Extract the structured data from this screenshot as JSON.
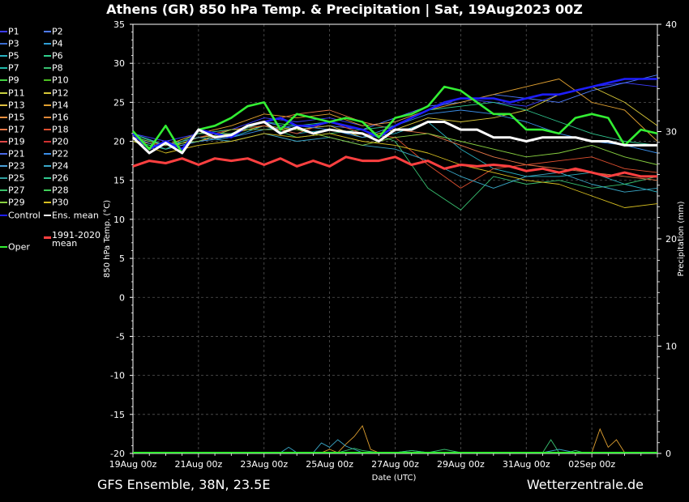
{
  "title": "Athens  (GR)  850 hPa Temp. & Precipitation | Sat, 19Aug2023 00Z",
  "footer_left": "GFS Ensemble, 38N, 23.5E",
  "footer_right": "Wetterzentrale.de",
  "chart_data": {
    "type": "line",
    "xlabel": "Date (UTC)",
    "ylabel": "850 hPa Temp. (°C)",
    "y2label": "Precipitation (mm)",
    "ylim": [
      -20,
      35
    ],
    "y2lim": [
      0,
      40
    ],
    "xlim_hours": [
      0,
      384
    ],
    "x_ticks": [
      {
        "label": "19Aug 00z",
        "hour": 0
      },
      {
        "label": "21Aug 00z",
        "hour": 48
      },
      {
        "label": "23Aug 00z",
        "hour": 96
      },
      {
        "label": "25Aug 00z",
        "hour": 144
      },
      {
        "label": "27Aug 00z",
        "hour": 192
      },
      {
        "label": "29Aug 00z",
        "hour": 240
      },
      {
        "label": "31Aug 00z",
        "hour": 288
      },
      {
        "label": "02Sep 00z",
        "hour": 336
      }
    ],
    "y_ticks": [
      35,
      30,
      25,
      20,
      15,
      10,
      5,
      0,
      -5,
      -10,
      -15,
      -20
    ],
    "y2_ticks": [
      40,
      30,
      20,
      10,
      0
    ],
    "grid": true,
    "legend_position": "left",
    "legend": [
      {
        "name": "P1",
        "color": "#3c3cff"
      },
      {
        "name": "P2",
        "color": "#4f7cff"
      },
      {
        "name": "P3",
        "color": "#3a6cd0"
      },
      {
        "name": "P4",
        "color": "#2f9fd6"
      },
      {
        "name": "P5",
        "color": "#28b0c0"
      },
      {
        "name": "P6",
        "color": "#2fd08c"
      },
      {
        "name": "P7",
        "color": "#20b8a8"
      },
      {
        "name": "P8",
        "color": "#38c070"
      },
      {
        "name": "P9",
        "color": "#40d040"
      },
      {
        "name": "P10",
        "color": "#4cc020"
      },
      {
        "name": "P11",
        "color": "#c8d040"
      },
      {
        "name": "P12",
        "color": "#d8c838"
      },
      {
        "name": "P13",
        "color": "#e0c040"
      },
      {
        "name": "P14",
        "color": "#e0a030"
      },
      {
        "name": "P15",
        "color": "#e89040"
      },
      {
        "name": "P16",
        "color": "#e08838"
      },
      {
        "name": "P17",
        "color": "#e87848"
      },
      {
        "name": "P18",
        "color": "#e05030"
      },
      {
        "name": "P19",
        "color": "#e04848"
      },
      {
        "name": "P20",
        "color": "#d03030"
      },
      {
        "name": "P21",
        "color": "#4a6ae8"
      },
      {
        "name": "P22",
        "color": "#3a8ee8"
      },
      {
        "name": "P23",
        "color": "#4aa0d8"
      },
      {
        "name": "P24",
        "color": "#3aa8c8"
      },
      {
        "name": "P25",
        "color": "#30a0a0"
      },
      {
        "name": "P26",
        "color": "#30c890"
      },
      {
        "name": "P27",
        "color": "#38c068"
      },
      {
        "name": "P28",
        "color": "#40d058"
      },
      {
        "name": "P29",
        "color": "#88d040"
      },
      {
        "name": "P30",
        "color": "#d8c020"
      },
      {
        "name": "Control",
        "color": "#1e1eff"
      },
      {
        "name": "Ens. mean",
        "color": "#ffffff"
      },
      {
        "name": "1991-2020\nmean",
        "color": "#ff4040"
      },
      {
        "name": "Oper",
        "color": "#33ee33"
      }
    ],
    "series": [
      {
        "name": "Control",
        "color": "#1e1eff",
        "x": [
          0,
          12,
          24,
          36,
          48,
          60,
          72,
          84,
          96,
          108,
          120,
          132,
          144,
          156,
          168,
          180,
          192,
          204,
          216,
          228,
          240,
          252,
          264,
          276,
          288,
          300,
          312,
          324,
          336,
          348,
          360,
          372,
          384
        ],
        "y": [
          21.0,
          19.0,
          20.0,
          19.0,
          21.5,
          21.0,
          20.5,
          22.0,
          22.5,
          23.0,
          22.0,
          22.0,
          22.5,
          22.0,
          21.5,
          20.5,
          22.0,
          23.0,
          24.0,
          25.0,
          25.5,
          25.5,
          25.5,
          25.0,
          25.5,
          26.0,
          26.0,
          26.5,
          27.0,
          27.5,
          28.0,
          28.0,
          28.0
        ]
      },
      {
        "name": "Ens. mean",
        "color": "#ffffff",
        "x": [
          0,
          12,
          24,
          36,
          48,
          60,
          72,
          84,
          96,
          108,
          120,
          132,
          144,
          156,
          168,
          180,
          192,
          204,
          216,
          228,
          240,
          252,
          264,
          276,
          288,
          300,
          312,
          324,
          336,
          348,
          360,
          372,
          384
        ],
        "y": [
          20.5,
          18.5,
          19.8,
          18.5,
          21.5,
          20.5,
          20.8,
          22.0,
          22.5,
          21.0,
          21.8,
          21.0,
          21.5,
          21.2,
          21.0,
          20.0,
          21.5,
          21.5,
          22.5,
          22.5,
          21.5,
          21.5,
          20.5,
          20.5,
          20.0,
          20.5,
          20.5,
          20.5,
          20.0,
          20.0,
          19.5,
          19.5,
          19.5
        ]
      },
      {
        "name": "1991-2020\nmean",
        "color": "#ff4040",
        "x": [
          0,
          12,
          24,
          36,
          48,
          60,
          72,
          84,
          96,
          108,
          120,
          132,
          144,
          156,
          168,
          180,
          192,
          204,
          216,
          228,
          240,
          252,
          264,
          276,
          288,
          300,
          312,
          324,
          336,
          348,
          360,
          372,
          384
        ],
        "y": [
          16.8,
          17.5,
          17.2,
          17.8,
          17.0,
          17.8,
          17.5,
          17.8,
          17.0,
          17.8,
          16.8,
          17.5,
          16.8,
          18.0,
          17.5,
          17.5,
          18.0,
          17.0,
          17.5,
          16.5,
          17.0,
          16.8,
          17.0,
          16.8,
          16.2,
          16.5,
          16.0,
          16.5,
          16.0,
          15.5,
          16.0,
          15.5,
          15.5
        ]
      },
      {
        "name": "Oper",
        "color": "#33ee33",
        "x": [
          0,
          12,
          24,
          36,
          48,
          60,
          72,
          84,
          96,
          108,
          120,
          132,
          144,
          156,
          168,
          180,
          192,
          204,
          216,
          228,
          240,
          252,
          264,
          276,
          288,
          300,
          312,
          324,
          336,
          348,
          360,
          372,
          384
        ],
        "y": [
          21.3,
          19.0,
          22.0,
          18.5,
          21.5,
          22.0,
          23.0,
          24.5,
          25.0,
          21.5,
          23.5,
          23.0,
          22.5,
          23.0,
          22.5,
          20.5,
          23.0,
          23.5,
          24.5,
          27.0,
          26.5,
          25.0,
          23.5,
          23.5,
          21.5,
          21.5,
          21.0,
          23.0,
          23.5,
          23.0,
          19.5,
          21.5,
          21.0
        ]
      },
      {
        "name": "P1",
        "color": "#3c3cff",
        "x": [
          0,
          24,
          48,
          72,
          96,
          120,
          144,
          168,
          192,
          216,
          240,
          264,
          288,
          312,
          336,
          360,
          384
        ],
        "y": [
          21.0,
          20.0,
          21.0,
          21.5,
          23.0,
          22.5,
          23.0,
          22.0,
          22.5,
          24.0,
          25.5,
          25.0,
          24.5,
          26.0,
          27.0,
          27.5,
          27.0
        ]
      },
      {
        "name": "P2",
        "color": "#4f7cff",
        "x": [
          0,
          24,
          48,
          72,
          96,
          120,
          144,
          168,
          192,
          216,
          240,
          264,
          288,
          312,
          336,
          360,
          384
        ],
        "y": [
          20.5,
          19.5,
          20.5,
          21.0,
          22.5,
          21.5,
          22.0,
          21.5,
          23.0,
          24.5,
          25.0,
          26.0,
          25.5,
          25.0,
          26.5,
          27.5,
          28.5
        ]
      },
      {
        "name": "P5",
        "color": "#28b0c0",
        "x": [
          0,
          24,
          48,
          72,
          96,
          120,
          144,
          168,
          192,
          216,
          240,
          264,
          288,
          312,
          336,
          360,
          384
        ],
        "y": [
          20.0,
          19.0,
          20.0,
          20.5,
          22.0,
          21.0,
          21.5,
          20.5,
          21.0,
          22.5,
          19.0,
          16.5,
          15.5,
          15.5,
          16.0,
          14.5,
          13.5
        ]
      },
      {
        "name": "P8",
        "color": "#38c070",
        "x": [
          0,
          24,
          48,
          72,
          96,
          120,
          144,
          168,
          192,
          216,
          240,
          264,
          288,
          312,
          336,
          360,
          384
        ],
        "y": [
          20.8,
          19.5,
          21.0,
          21.5,
          22.0,
          20.5,
          21.0,
          21.5,
          20.0,
          14.0,
          11.2,
          15.5,
          14.5,
          15.0,
          14.0,
          14.5,
          15.5
        ]
      },
      {
        "name": "P12",
        "color": "#d8c838",
        "x": [
          0,
          24,
          48,
          72,
          96,
          120,
          144,
          168,
          192,
          216,
          240,
          264,
          288,
          312,
          336,
          360,
          384
        ],
        "y": [
          20.5,
          19.0,
          20.5,
          21.0,
          22.0,
          21.5,
          22.0,
          20.5,
          21.5,
          23.0,
          22.5,
          23.0,
          24.0,
          26.0,
          27.0,
          25.0,
          22.0
        ]
      },
      {
        "name": "P14",
        "color": "#e0a030",
        "x": [
          0,
          24,
          48,
          72,
          96,
          120,
          144,
          168,
          192,
          216,
          240,
          264,
          288,
          312,
          336,
          360,
          384
        ],
        "y": [
          20.0,
          19.5,
          21.0,
          22.0,
          23.5,
          23.0,
          23.5,
          22.0,
          22.5,
          24.0,
          25.0,
          26.0,
          27.0,
          28.0,
          25.0,
          24.0,
          20.0
        ]
      },
      {
        "name": "P17",
        "color": "#e87848",
        "x": [
          0,
          24,
          48,
          72,
          96,
          120,
          144,
          168,
          192,
          216,
          240,
          264,
          288,
          312,
          336,
          360,
          384
        ],
        "y": [
          20.5,
          19.0,
          20.0,
          21.0,
          22.5,
          23.5,
          24.0,
          22.5,
          21.5,
          21.0,
          19.5,
          18.0,
          17.0,
          16.5,
          16.0,
          15.5,
          15.0
        ]
      },
      {
        "name": "P18",
        "color": "#e05030",
        "x": [
          0,
          24,
          48,
          72,
          96,
          120,
          144,
          168,
          192,
          216,
          240,
          264,
          288,
          312,
          336,
          360,
          384
        ],
        "y": [
          20.0,
          19.5,
          20.5,
          21.5,
          22.0,
          21.0,
          22.5,
          21.0,
          20.5,
          17.0,
          14.0,
          16.5,
          17.0,
          17.5,
          18.0,
          16.5,
          16.0
        ]
      },
      {
        "name": "P22",
        "color": "#3a8ee8",
        "x": [
          0,
          24,
          48,
          72,
          96,
          120,
          144,
          168,
          192,
          216,
          240,
          264,
          288,
          312,
          336,
          360,
          384
        ],
        "y": [
          20.5,
          19.0,
          20.0,
          20.5,
          21.5,
          22.0,
          21.5,
          20.5,
          22.0,
          23.5,
          24.0,
          23.5,
          22.5,
          21.0,
          20.0,
          19.5,
          18.5
        ]
      },
      {
        "name": "P24",
        "color": "#3aa8c8",
        "x": [
          0,
          24,
          48,
          72,
          96,
          120,
          144,
          168,
          192,
          216,
          240,
          264,
          288,
          312,
          336,
          360,
          384
        ],
        "y": [
          21.0,
          19.5,
          20.5,
          20.0,
          21.0,
          20.0,
          20.5,
          19.5,
          19.0,
          17.5,
          15.5,
          14.0,
          15.5,
          16.0,
          14.5,
          13.5,
          14.0
        ]
      },
      {
        "name": "P26",
        "color": "#30c890",
        "x": [
          0,
          24,
          48,
          72,
          96,
          120,
          144,
          168,
          192,
          216,
          240,
          264,
          288,
          312,
          336,
          360,
          384
        ],
        "y": [
          20.0,
          19.0,
          21.0,
          21.0,
          22.5,
          22.0,
          22.5,
          21.5,
          22.0,
          24.0,
          24.5,
          25.0,
          24.0,
          22.5,
          21.0,
          20.0,
          19.5
        ]
      },
      {
        "name": "P29",
        "color": "#88d040",
        "x": [
          0,
          24,
          48,
          72,
          96,
          120,
          144,
          168,
          192,
          216,
          240,
          264,
          288,
          312,
          336,
          360,
          384
        ],
        "y": [
          20.5,
          19.5,
          20.0,
          21.5,
          21.5,
          21.5,
          20.5,
          19.5,
          20.5,
          21.0,
          20.0,
          19.0,
          18.0,
          18.5,
          19.5,
          18.0,
          17.0
        ]
      },
      {
        "name": "P30",
        "color": "#d8c020",
        "x": [
          0,
          24,
          48,
          72,
          96,
          120,
          144,
          168,
          192,
          216,
          240,
          264,
          288,
          312,
          336,
          360,
          384
        ],
        "y": [
          20.0,
          18.5,
          19.5,
          20.0,
          21.0,
          20.5,
          21.0,
          20.0,
          19.5,
          18.5,
          17.0,
          16.0,
          15.0,
          14.5,
          13.0,
          11.5,
          12.0
        ]
      }
    ],
    "precip_series": [
      {
        "name": "P14",
        "color": "#e0a030",
        "x": [
          0,
          96,
          138,
          144,
          150,
          156,
          162,
          168,
          174,
          180,
          186,
          192,
          288,
          324,
          330,
          336,
          342,
          348,
          354,
          360,
          384
        ],
        "y": [
          0,
          0,
          0,
          0.3,
          0,
          0.8,
          1.5,
          2.5,
          0.3,
          0,
          0,
          0,
          0,
          0,
          0,
          0,
          2.2,
          0.5,
          1.2,
          0,
          0
        ]
      },
      {
        "name": "P24",
        "color": "#3aa8c8",
        "x": [
          0,
          96,
          108,
          114,
          120,
          132,
          138,
          144,
          150,
          156,
          162,
          168,
          192,
          204,
          216,
          228,
          300,
          312,
          324,
          336,
          384
        ],
        "y": [
          0,
          0,
          0,
          0.5,
          0,
          0,
          0.9,
          0.5,
          1.2,
          0.6,
          0.3,
          0,
          0,
          0.2,
          0,
          0,
          0,
          0.3,
          0,
          0,
          0
        ]
      },
      {
        "name": "P8",
        "color": "#38c070",
        "x": [
          0,
          132,
          144,
          150,
          156,
          162,
          168,
          180,
          192,
          204,
          216,
          228,
          240,
          300,
          306,
          312,
          318,
          324,
          330,
          336,
          384
        ],
        "y": [
          0,
          0,
          0,
          0,
          0.2,
          0.4,
          0.2,
          0,
          0,
          0.2,
          0,
          0.3,
          0,
          0,
          1.2,
          0,
          0,
          0.2,
          0,
          0,
          0
        ]
      },
      {
        "name": "Oper",
        "color": "#33ee33",
        "x": [
          0,
          384
        ],
        "y": [
          0,
          0
        ]
      }
    ]
  }
}
